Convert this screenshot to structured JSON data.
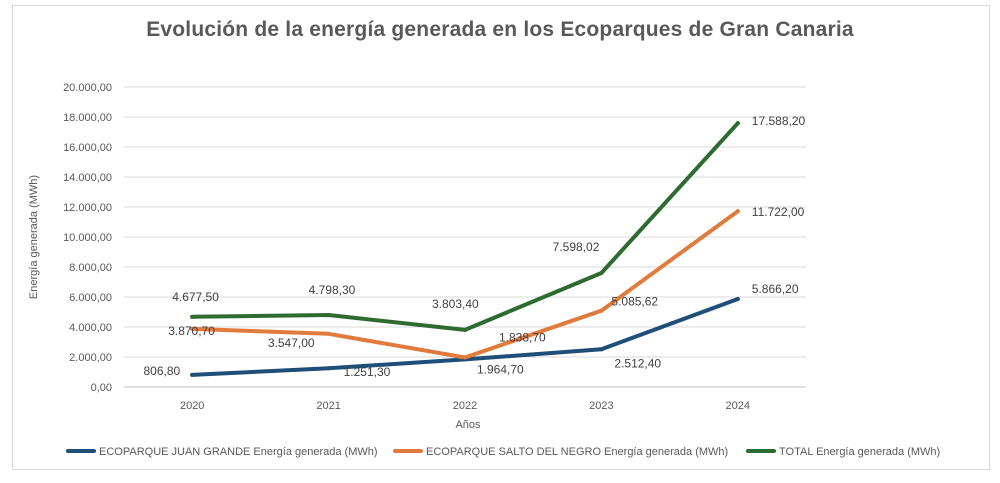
{
  "chart_data": {
    "type": "line",
    "title": "Evolución de la energía generada en los Ecoparques de Gran Canaria",
    "xlabel": "Años",
    "ylabel": "Energía generada (MWh)",
    "categories": [
      "2020",
      "2021",
      "2022",
      "2023",
      "2024"
    ],
    "ylim": [
      0,
      20000
    ],
    "yticks": [
      0,
      2000,
      4000,
      6000,
      8000,
      10000,
      12000,
      14000,
      16000,
      18000,
      20000
    ],
    "ytick_labels": [
      "0,00",
      "2.000,00",
      "4.000,00",
      "6.000,00",
      "8.000,00",
      "10.000,00",
      "12.000,00",
      "14.000,00",
      "16.000,00",
      "18.000,00",
      "20.000,00"
    ],
    "grid": true,
    "legend_position": "bottom",
    "series": [
      {
        "name": "ECOPARQUE JUAN GRANDE Energía generada (MWh)",
        "color": "#1f4e79",
        "values": [
          806.8,
          1251.3,
          1838.7,
          2512.4,
          5866.2
        ],
        "labels": [
          "806,80",
          "1.251,30",
          "1.838,70",
          "2.512,40",
          "5.866,20"
        ]
      },
      {
        "name": "ECOPARQUE SALTO DEL NEGRO Energía generada (MWh)",
        "color": "#e07b3c",
        "values": [
          3870.7,
          3547.0,
          1964.7,
          5085.62,
          11722.0
        ],
        "labels": [
          "3.870,70",
          "3.547,00",
          "1.964,70",
          "5.085,62",
          "11.722,00"
        ]
      },
      {
        "name": "TOTAL Energía generada (MWh)",
        "color": "#2e6b30",
        "values": [
          4677.5,
          4798.3,
          3803.4,
          7598.02,
          17588.2
        ],
        "labels": [
          "4.677,50",
          "4.798,30",
          "3.803,40",
          "7.598,02",
          "17.588,20"
        ]
      }
    ]
  }
}
